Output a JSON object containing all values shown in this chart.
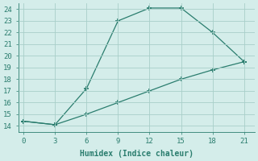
{
  "line1_x": [
    0,
    3,
    6,
    9,
    12,
    15,
    18,
    21
  ],
  "line1_y": [
    14.4,
    14.1,
    17.2,
    23.0,
    24.1,
    24.1,
    22.0,
    19.5
  ],
  "line2_x": [
    0,
    3,
    6,
    9,
    12,
    15,
    18,
    21
  ],
  "line2_y": [
    14.4,
    14.1,
    15.0,
    16.0,
    17.0,
    18.0,
    18.8,
    19.5
  ],
  "line_color": "#2a7d6e",
  "bg_color": "#d4edea",
  "grid_color": "#a8cfc9",
  "xlabel": "Humidex (Indice chaleur)",
  "xlabel_fontsize": 7,
  "xlim": [
    -0.5,
    22
  ],
  "ylim": [
    13.5,
    24.5
  ],
  "xticks": [
    0,
    3,
    6,
    9,
    12,
    15,
    18,
    21
  ],
  "yticks": [
    14,
    15,
    16,
    17,
    18,
    19,
    20,
    21,
    22,
    23,
    24
  ],
  "marker": "+",
  "markersize": 5,
  "linewidth": 0.9
}
